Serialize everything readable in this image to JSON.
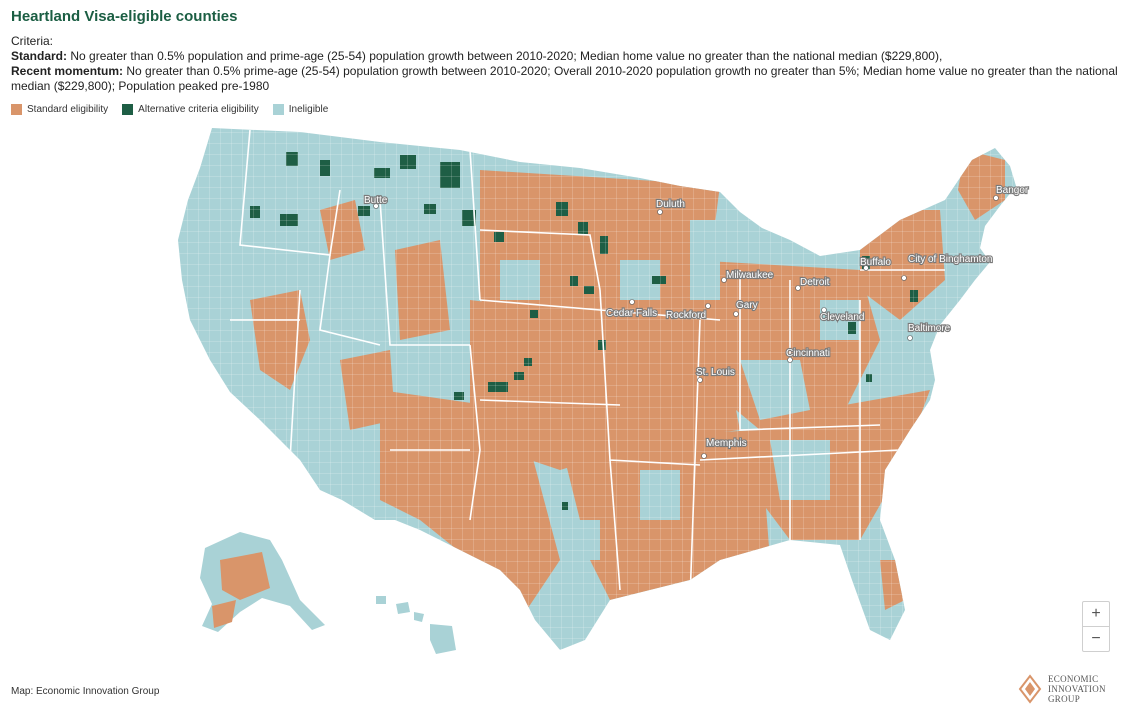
{
  "title": "Heartland Visa-eligible counties",
  "criteria": {
    "heading": "Criteria:",
    "standard_label": "Standard:",
    "standard_text": " No greater than 0.5% population and prime-age (25-54) population growth between 2010-2020; Median home value no greater than the national median ($229,800),",
    "momentum_label": "Recent momentum:",
    "momentum_text": " No greater than 0.5% prime-age (25-54) population growth between 2010-2020; Overall 2010-2020 population growth no greater than 5%; Median home value no greater than the national median ($229,800); Population peaked pre-1980"
  },
  "legend": [
    {
      "label": "Standard eligibility",
      "color": "#d9956a"
    },
    {
      "label": "Alternative criteria eligibility",
      "color": "#1e5e45"
    },
    {
      "label": "Ineligible",
      "color": "#a9d2d6"
    }
  ],
  "colors": {
    "standard": "#d9956a",
    "alternative": "#1e5e45",
    "ineligible": "#a9d2d6",
    "title": "#1b5e43"
  },
  "cities": [
    {
      "name": "Bangor"
    },
    {
      "name": "Duluth"
    },
    {
      "name": "Butte"
    },
    {
      "name": "Buffalo"
    },
    {
      "name": "City of Binghamton"
    },
    {
      "name": "Milwaukee"
    },
    {
      "name": "Detroit"
    },
    {
      "name": "Gary"
    },
    {
      "name": "Cedar Falls"
    },
    {
      "name": "Rockford"
    },
    {
      "name": "Cleveland"
    },
    {
      "name": "Baltimore"
    },
    {
      "name": "Cincinnati"
    },
    {
      "name": "St. Louis"
    },
    {
      "name": "Memphis"
    }
  ],
  "zoom": {
    "in_label": "+",
    "out_label": "−"
  },
  "credit": "Map: Economic Innovation Group",
  "logo": {
    "line1": "ECONOMIC",
    "line2": "INNOVATION",
    "line3": "GROUP"
  }
}
